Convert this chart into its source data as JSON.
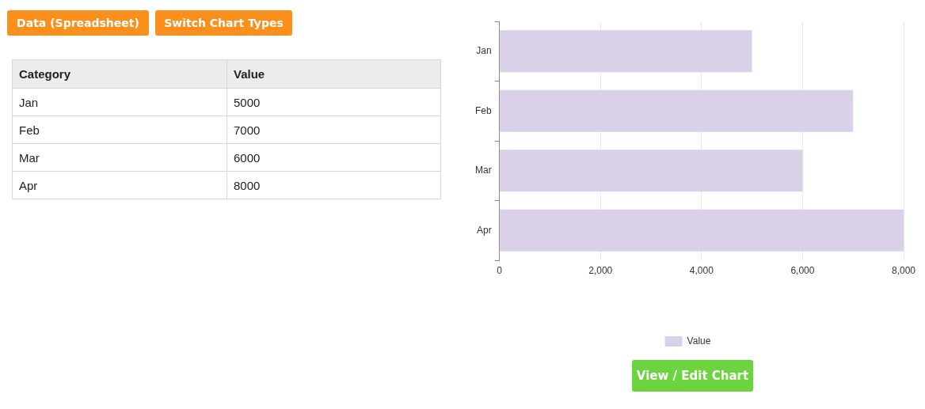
{
  "chart_data": [
    {
      "type": "other",
      "annotations": [
        "Data (Spreadsheet)",
        "Switch Chart Types",
        "Category",
        "Value",
        "Jan",
        "5000",
        "Feb",
        "7000",
        "Mar",
        "6000",
        "Apr",
        "8000"
      ]
    },
    {
      "type": "bar",
      "orientation": "horizontal",
      "categories": [
        "Jan",
        "Feb",
        "Mar",
        "Apr"
      ],
      "series": [
        {
          "name": "Value",
          "color": "#dad1e8",
          "values": [
            5000,
            7000,
            6000,
            8000
          ]
        }
      ],
      "xlim": [
        0,
        8000
      ],
      "xticks": [
        0,
        {
          "value": 2000,
          "label": "2,000"
        },
        {
          "value": 4000,
          "label": "4,000"
        },
        {
          "value": 6000,
          "label": "6,000"
        },
        {
          "value": 8000,
          "label": "8,000"
        }
      ],
      "grid": "x",
      "legend": "bottom",
      "annotations": [
        "View / Edit Chart"
      ]
    }
  ]
}
